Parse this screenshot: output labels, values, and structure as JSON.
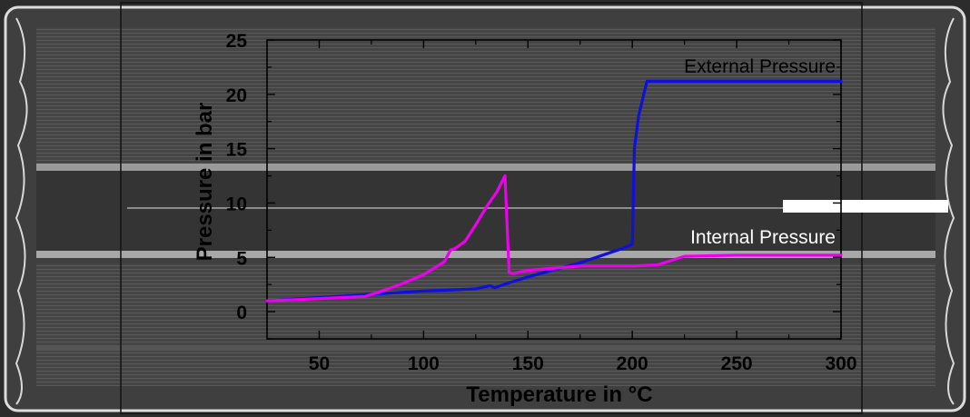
{
  "chart_data": {
    "type": "line",
    "title": "",
    "xlabel": "Temperature in °C",
    "ylabel": "Pressure in bar",
    "xlim": [
      25,
      300
    ],
    "ylim": [
      -2.5,
      25
    ],
    "x_ticks": [
      50,
      100,
      150,
      200,
      250,
      300
    ],
    "y_ticks": [
      0,
      5,
      10,
      15,
      20,
      25
    ],
    "grid": false,
    "legend": "inline labels",
    "series": [
      {
        "name": "External Pressure",
        "color": "#1010dd",
        "x": [
          25,
          50,
          75,
          100,
          125,
          132,
          134,
          140,
          150,
          175,
          195,
          200,
          201,
          203,
          207,
          220,
          250,
          300
        ],
        "y": [
          1.0,
          1.3,
          1.6,
          1.9,
          2.1,
          2.4,
          2.2,
          2.6,
          3.2,
          4.5,
          5.8,
          6.2,
          15.0,
          18.0,
          21.2,
          21.2,
          21.2,
          21.2
        ]
      },
      {
        "name": "Internal Pressure",
        "color": "#ee00ee",
        "x": [
          25,
          50,
          72,
          80,
          90,
          100,
          110,
          113,
          115,
          120,
          125,
          130,
          135,
          139,
          141,
          143,
          150,
          175,
          200,
          212,
          225,
          250,
          300
        ],
        "y": [
          1.0,
          1.2,
          1.4,
          1.9,
          2.6,
          3.4,
          4.6,
          5.7,
          5.8,
          6.5,
          8.0,
          9.6,
          11.0,
          12.5,
          3.6,
          3.5,
          3.8,
          4.2,
          4.2,
          4.3,
          5.1,
          5.2,
          5.2
        ]
      }
    ]
  }
}
